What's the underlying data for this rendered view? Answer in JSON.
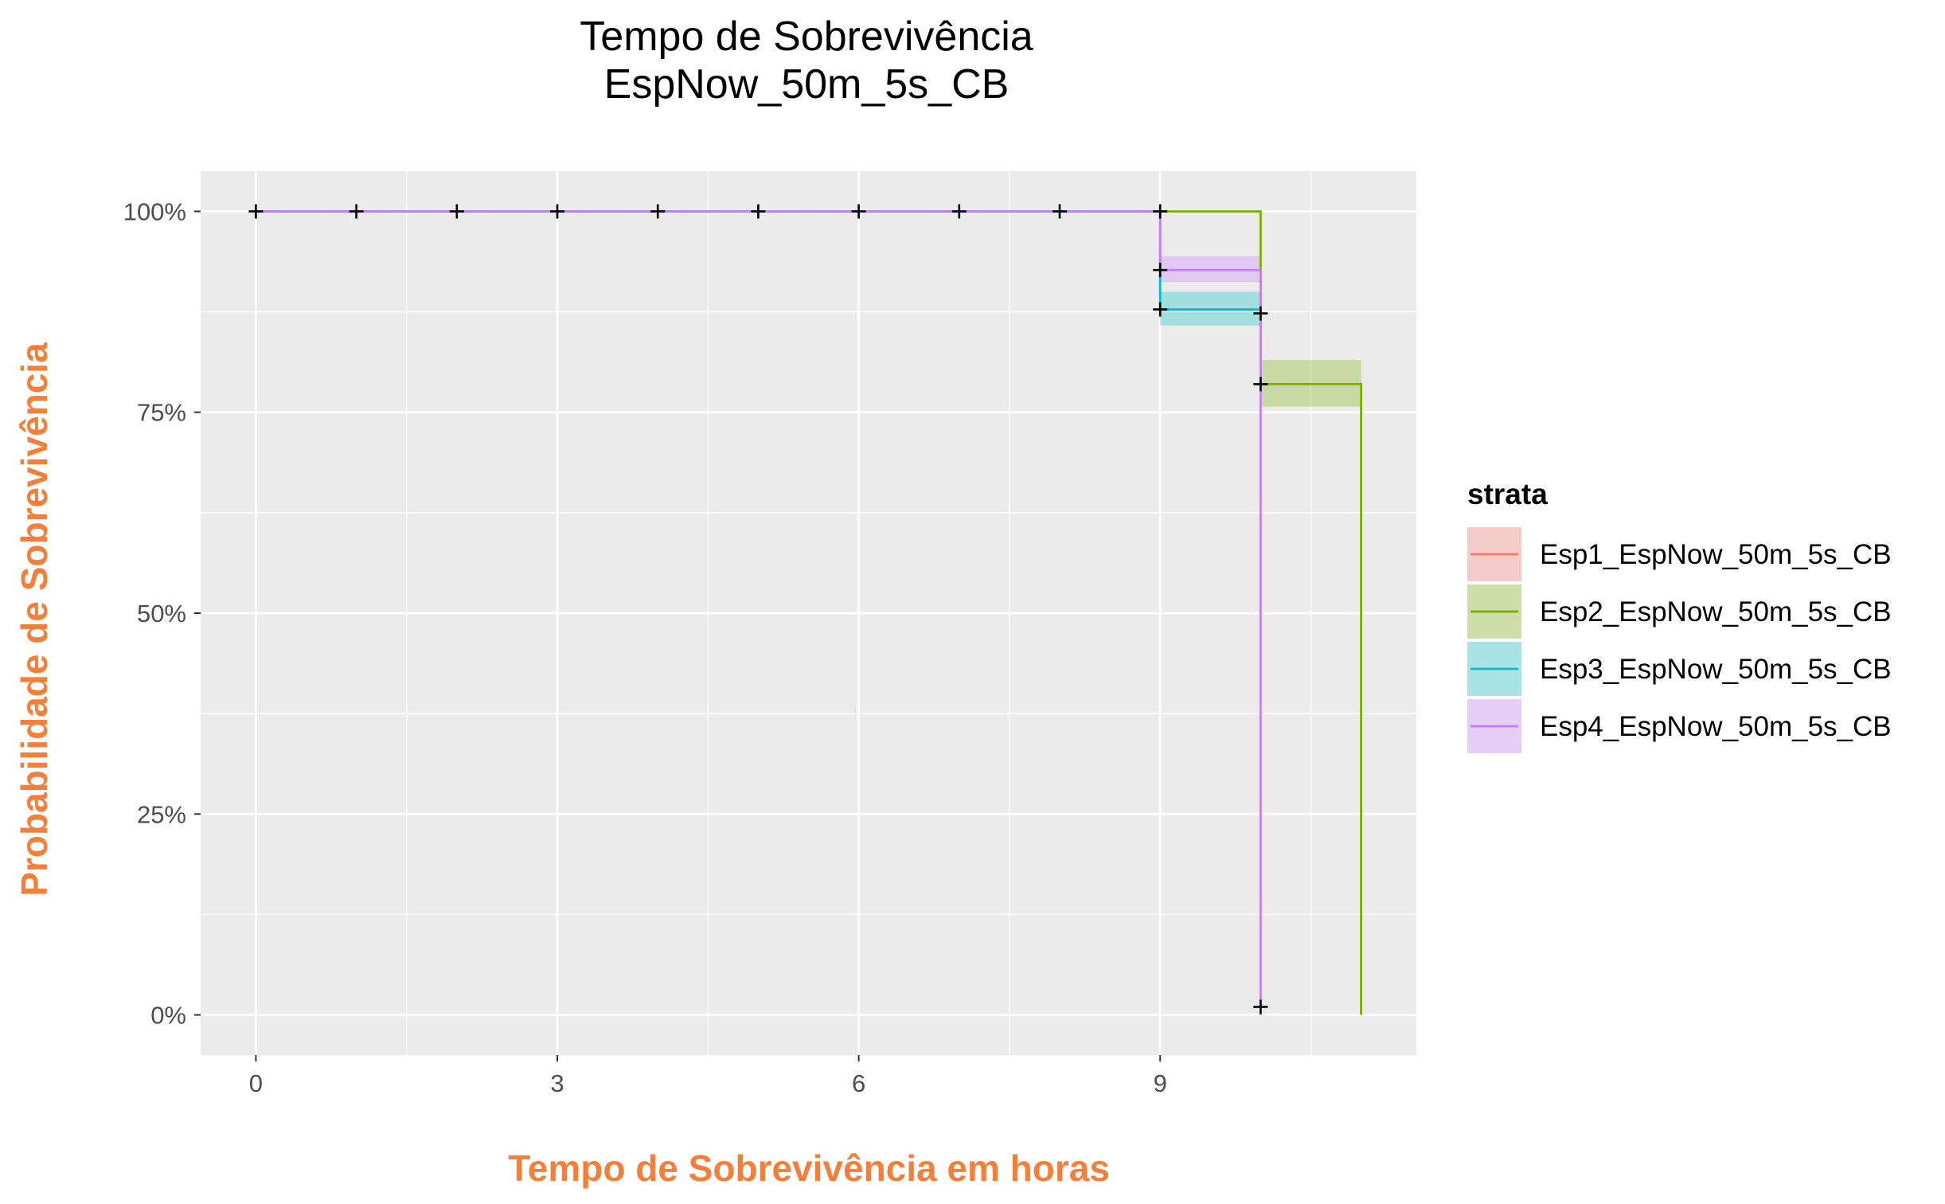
{
  "chart_data": {
    "type": "line",
    "subtype": "step",
    "title": "Tempo de Sobrevivência",
    "subtitle": "EspNow_50m_5s_CB",
    "xlabel": "Tempo de Sobrevivência em horas",
    "ylabel": "Probabilidade de Sobrevivência",
    "label_color": "#f47f3a",
    "xlim": [
      -0.55,
      11.55
    ],
    "ylim": [
      -0.05,
      1.05
    ],
    "x_ticks": [
      0,
      3,
      6,
      9
    ],
    "x_tick_labels": [
      "0",
      "3",
      "6",
      "9"
    ],
    "y_ticks": [
      0,
      0.25,
      0.5,
      0.75,
      1
    ],
    "y_tick_labels": [
      "0%",
      "25%",
      "50%",
      "75%",
      "100%"
    ],
    "panel_background": "#ebebeb",
    "grid": true,
    "legend_title": "strata",
    "legend_position": "right",
    "series": [
      {
        "name": "Esp1_EspNow_50m_5s_CB",
        "color": "#f8766d",
        "steps": [
          [
            0,
            1
          ],
          [
            9,
            1
          ]
        ],
        "ci": [],
        "censor": []
      },
      {
        "name": "Esp2_EspNow_50m_5s_CB",
        "color": "#7cae00",
        "steps": [
          [
            0,
            1
          ],
          [
            10,
            1
          ],
          [
            10,
            0.785
          ],
          [
            11,
            0.785
          ],
          [
            11,
            0
          ]
        ],
        "ci": [
          {
            "x0": 10,
            "x1": 11,
            "lo": 0.757,
            "hi": 0.815
          }
        ],
        "censor": [
          [
            10,
            0.785
          ]
        ]
      },
      {
        "name": "Esp3_EspNow_50m_5s_CB",
        "color": "#00bfc4",
        "steps": [
          [
            0,
            1
          ],
          [
            9,
            1
          ],
          [
            9,
            0.878
          ],
          [
            10,
            0.878
          ]
        ],
        "ci": [
          {
            "x0": 9,
            "x1": 10,
            "lo": 0.858,
            "hi": 0.9
          }
        ],
        "censor": [
          [
            9,
            0.878
          ],
          [
            10,
            0.873
          ]
        ]
      },
      {
        "name": "Esp4_EspNow_50m_5s_CB",
        "color": "#c77cff",
        "steps": [
          [
            0,
            1
          ],
          [
            9,
            1
          ],
          [
            9,
            0.927
          ],
          [
            10,
            0.927
          ],
          [
            10,
            0
          ]
        ],
        "ci": [
          {
            "x0": 9,
            "x1": 10,
            "lo": 0.912,
            "hi": 0.944
          }
        ],
        "censor": [
          [
            9,
            0.927
          ],
          [
            10,
            0.01
          ]
        ]
      }
    ],
    "censor_marks": [
      [
        0,
        1
      ],
      [
        1,
        1
      ],
      [
        2,
        1
      ],
      [
        3,
        1
      ],
      [
        4,
        1
      ],
      [
        5,
        1
      ],
      [
        6,
        1
      ],
      [
        7,
        1
      ],
      [
        8,
        1
      ],
      [
        9,
        1
      ]
    ]
  }
}
